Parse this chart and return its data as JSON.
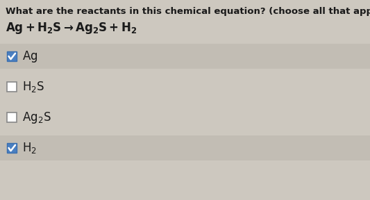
{
  "title": "What are the reactants in this chemical equation? (choose all that apply)",
  "bg_color": "#cdc8bf",
  "option_highlight_color": "#c2bdb4",
  "checkbox_checked_fill": "#4a7fc1",
  "checkbox_checked_edge": "#3a6faf",
  "checkbox_unchecked_fill": "#ffffff",
  "checkbox_unchecked_edge": "#888888",
  "text_color": "#1a1a1a",
  "title_fontsize": 9.5,
  "equation_fontsize": 12,
  "option_fontsize": 12,
  "options": [
    {
      "label_mathtext": "$\\mathrm{Ag}$",
      "checked": true
    },
    {
      "label_mathtext": "$\\mathrm{H_2S}$",
      "checked": false
    },
    {
      "label_mathtext": "$\\mathrm{Ag_2S}$",
      "checked": false
    },
    {
      "label_mathtext": "$\\mathrm{H_2}$",
      "checked": true
    }
  ]
}
